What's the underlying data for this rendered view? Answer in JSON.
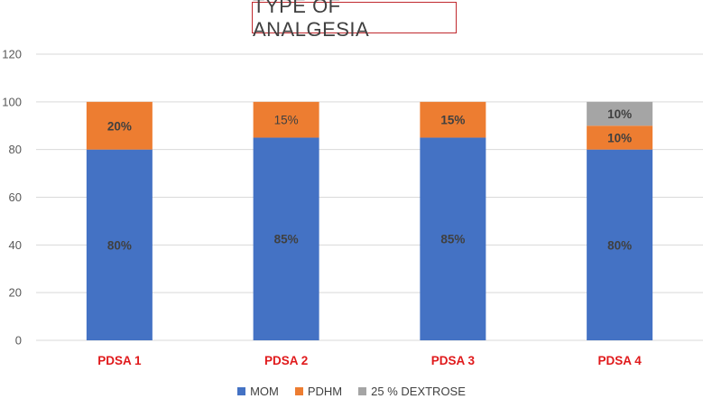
{
  "chart_data": {
    "type": "bar",
    "stacked": true,
    "title": "TYPE OF ANALGESIA",
    "xlabel": "",
    "ylabel": "",
    "categories": [
      "PDSA 1",
      "PDSA 2",
      "PDSA 3",
      "PDSA 4"
    ],
    "ylim": [
      0,
      120
    ],
    "yticks": [
      "0",
      "20",
      "40",
      "60",
      "80",
      "100",
      "120"
    ],
    "grid": true,
    "legend_position": "bottom",
    "series": [
      {
        "name": "MOM",
        "color": "#4472c4",
        "values": [
          80,
          85,
          85,
          80
        ],
        "labels": [
          "80%",
          "85%",
          "85%",
          "80%"
        ]
      },
      {
        "name": "PDHM",
        "color": "#ed7d31",
        "values": [
          20,
          15,
          15,
          10
        ],
        "labels": [
          "20%",
          "15%",
          "15%",
          "10%"
        ]
      },
      {
        "name": "25 % DEXTROSE",
        "color": "#a5a5a5",
        "values": [
          0,
          0,
          0,
          10
        ],
        "labels": [
          "",
          "",
          "",
          "10%"
        ]
      }
    ],
    "category_label_color": "#e0191b"
  }
}
